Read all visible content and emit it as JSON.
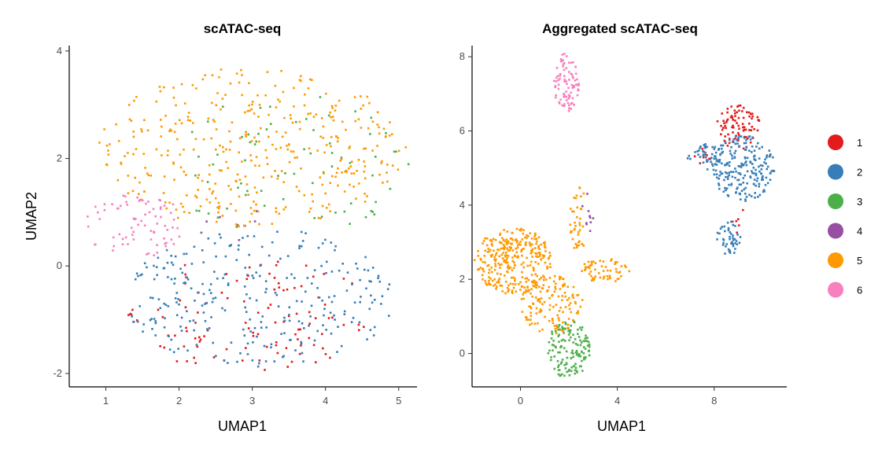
{
  "palette": {
    "1": "#E41A1C",
    "2": "#377EB8",
    "3": "#4DAF4A",
    "4": "#984EA3",
    "5": "#FF9900",
    "6": "#F781BF"
  },
  "chart_data": [
    {
      "type": "scatter",
      "title": "scATAC-seq",
      "xlabel": "UMAP1",
      "ylabel": "UMAP2",
      "xlim": [
        0.5,
        5.25
      ],
      "ylim": [
        -2.25,
        4.1
      ],
      "xticks": [
        1,
        2,
        3,
        4,
        5
      ],
      "yticks": [
        -2,
        0,
        2,
        4
      ],
      "grid": false,
      "series": [
        {
          "name": "1",
          "color": "#E41A1C",
          "blobs": [
            {
              "cx": 3.0,
              "cy": -0.9,
              "rx": 1.7,
              "ry": 1.1,
              "n": 110
            }
          ]
        },
        {
          "name": "2",
          "color": "#377EB8",
          "blobs": [
            {
              "cx": 3.1,
              "cy": -0.6,
              "rx": 1.85,
              "ry": 1.3,
              "n": 280
            }
          ]
        },
        {
          "name": "3",
          "color": "#4DAF4A",
          "blobs": [
            {
              "cx": 3.5,
              "cy": 1.9,
              "rx": 1.7,
              "ry": 1.3,
              "n": 70
            }
          ]
        },
        {
          "name": "4",
          "color": "#984EA3",
          "blobs": [
            {
              "cx": 2.6,
              "cy": 0.8,
              "rx": 0.6,
              "ry": 0.35,
              "n": 8
            }
          ]
        },
        {
          "name": "5",
          "color": "#FF9900",
          "blobs": [
            {
              "cx": 3.0,
              "cy": 2.2,
              "rx": 2.1,
              "ry": 1.5,
              "n": 380
            }
          ]
        },
        {
          "name": "6",
          "color": "#F781BF",
          "blobs": [
            {
              "cx": 1.4,
              "cy": 0.75,
              "rx": 0.7,
              "ry": 0.6,
              "n": 75
            }
          ]
        }
      ]
    },
    {
      "type": "scatter",
      "title": "Aggregated scATAC-seq",
      "xlabel": "UMAP1",
      "ylabel": "",
      "xlim": [
        -2.0,
        11.0
      ],
      "ylim": [
        -0.9,
        8.3
      ],
      "xticks": [
        0,
        4,
        8
      ],
      "yticks": [
        0,
        2,
        4,
        6,
        8
      ],
      "grid": false,
      "series": [
        {
          "name": "1",
          "color": "#E41A1C",
          "blobs": [
            {
              "cx": 9.0,
              "cy": 6.1,
              "rx": 0.9,
              "ry": 0.6,
              "n": 85
            },
            {
              "cx": 7.5,
              "cy": 5.3,
              "rx": 0.4,
              "ry": 0.3,
              "n": 8
            },
            {
              "cx": 9.0,
              "cy": 3.6,
              "rx": 0.3,
              "ry": 0.35,
              "n": 6
            }
          ]
        },
        {
          "name": "2",
          "color": "#377EB8",
          "blobs": [
            {
              "cx": 9.2,
              "cy": 5.0,
              "rx": 1.3,
              "ry": 0.9,
              "n": 210
            },
            {
              "cx": 7.6,
              "cy": 5.3,
              "rx": 0.7,
              "ry": 0.35,
              "n": 40
            },
            {
              "cx": 8.6,
              "cy": 3.1,
              "rx": 0.5,
              "ry": 0.5,
              "n": 45
            }
          ]
        },
        {
          "name": "3",
          "color": "#4DAF4A",
          "blobs": [
            {
              "cx": 2.0,
              "cy": 0.1,
              "rx": 0.9,
              "ry": 0.8,
              "n": 140
            }
          ]
        },
        {
          "name": "4",
          "color": "#984EA3",
          "blobs": [
            {
              "cx": 2.9,
              "cy": 3.9,
              "rx": 0.4,
              "ry": 0.6,
              "n": 10
            }
          ]
        },
        {
          "name": "5",
          "color": "#FF9900",
          "blobs": [
            {
              "cx": -0.3,
              "cy": 2.5,
              "rx": 1.6,
              "ry": 0.9,
              "n": 300
            },
            {
              "cx": 1.3,
              "cy": 1.3,
              "rx": 1.3,
              "ry": 0.8,
              "n": 140
            },
            {
              "cx": 3.5,
              "cy": 2.25,
              "rx": 1.0,
              "ry": 0.35,
              "n": 60
            },
            {
              "cx": 2.4,
              "cy": 3.6,
              "rx": 0.35,
              "ry": 0.9,
              "n": 40
            }
          ]
        },
        {
          "name": "6",
          "color": "#F781BF",
          "blobs": [
            {
              "cx": 1.9,
              "cy": 7.3,
              "rx": 0.55,
              "ry": 0.8,
              "n": 90
            }
          ]
        }
      ]
    }
  ],
  "legend": {
    "placement": "right",
    "entries": [
      "1",
      "2",
      "3",
      "4",
      "5",
      "6"
    ]
  }
}
